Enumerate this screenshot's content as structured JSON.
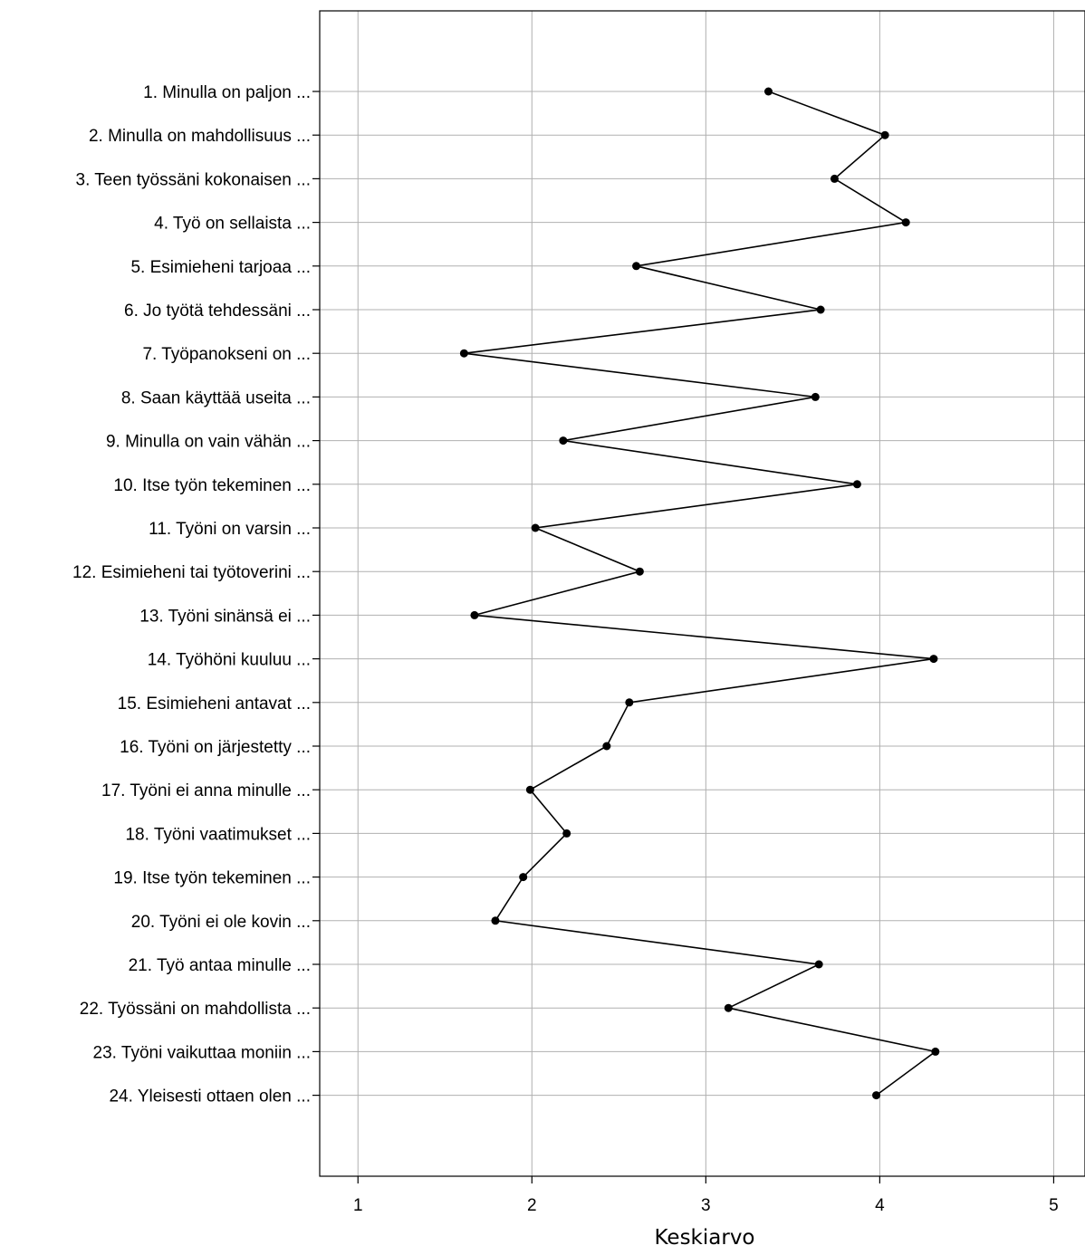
{
  "chart_data": {
    "type": "line",
    "orientation": "horizontal",
    "xlabel": "Keskiarvo",
    "xlim": [
      0.78,
      5.18
    ],
    "xticks": [
      1,
      2,
      3,
      4,
      5
    ],
    "grid": true,
    "categories": [
      "1. Minulla on paljon ...",
      "2. Minulla on mahdollisuus ...",
      "3. Teen työssäni kokonaisen ...",
      "4. Työ on sellaista ...",
      "5. Esimieheni tarjoaa ...",
      "6. Jo työtä tehdessäni ...",
      "7. Työpanokseni on ...",
      "8. Saan käyttää useita ...",
      "9. Minulla on vain vähän ...",
      "10. Itse työn tekeminen ...",
      "11. Työni on varsin ...",
      "12. Esimieheni tai työtoverini ...",
      "13. Työni sinänsä ei ...",
      "14. Työhöni kuuluu ...",
      "15. Esimieheni antavat ...",
      "16. Työni on järjestetty ...",
      "17. Työni ei anna minulle ...",
      "18. Työni vaatimukset ...",
      "19. Itse työn tekeminen ...",
      "20. Työni ei ole kovin ...",
      "21. Työ antaa minulle ...",
      "22. Työssäni on mahdollista ...",
      "23. Työni vaikuttaa moniin ...",
      "24. Yleisesti ottaen olen ..."
    ],
    "values": [
      3.36,
      4.03,
      3.74,
      4.15,
      2.6,
      3.66,
      1.61,
      3.63,
      2.18,
      3.87,
      2.02,
      2.62,
      1.67,
      4.31,
      2.56,
      2.43,
      1.99,
      2.2,
      1.95,
      1.79,
      3.65,
      3.13,
      4.32,
      3.98
    ]
  }
}
